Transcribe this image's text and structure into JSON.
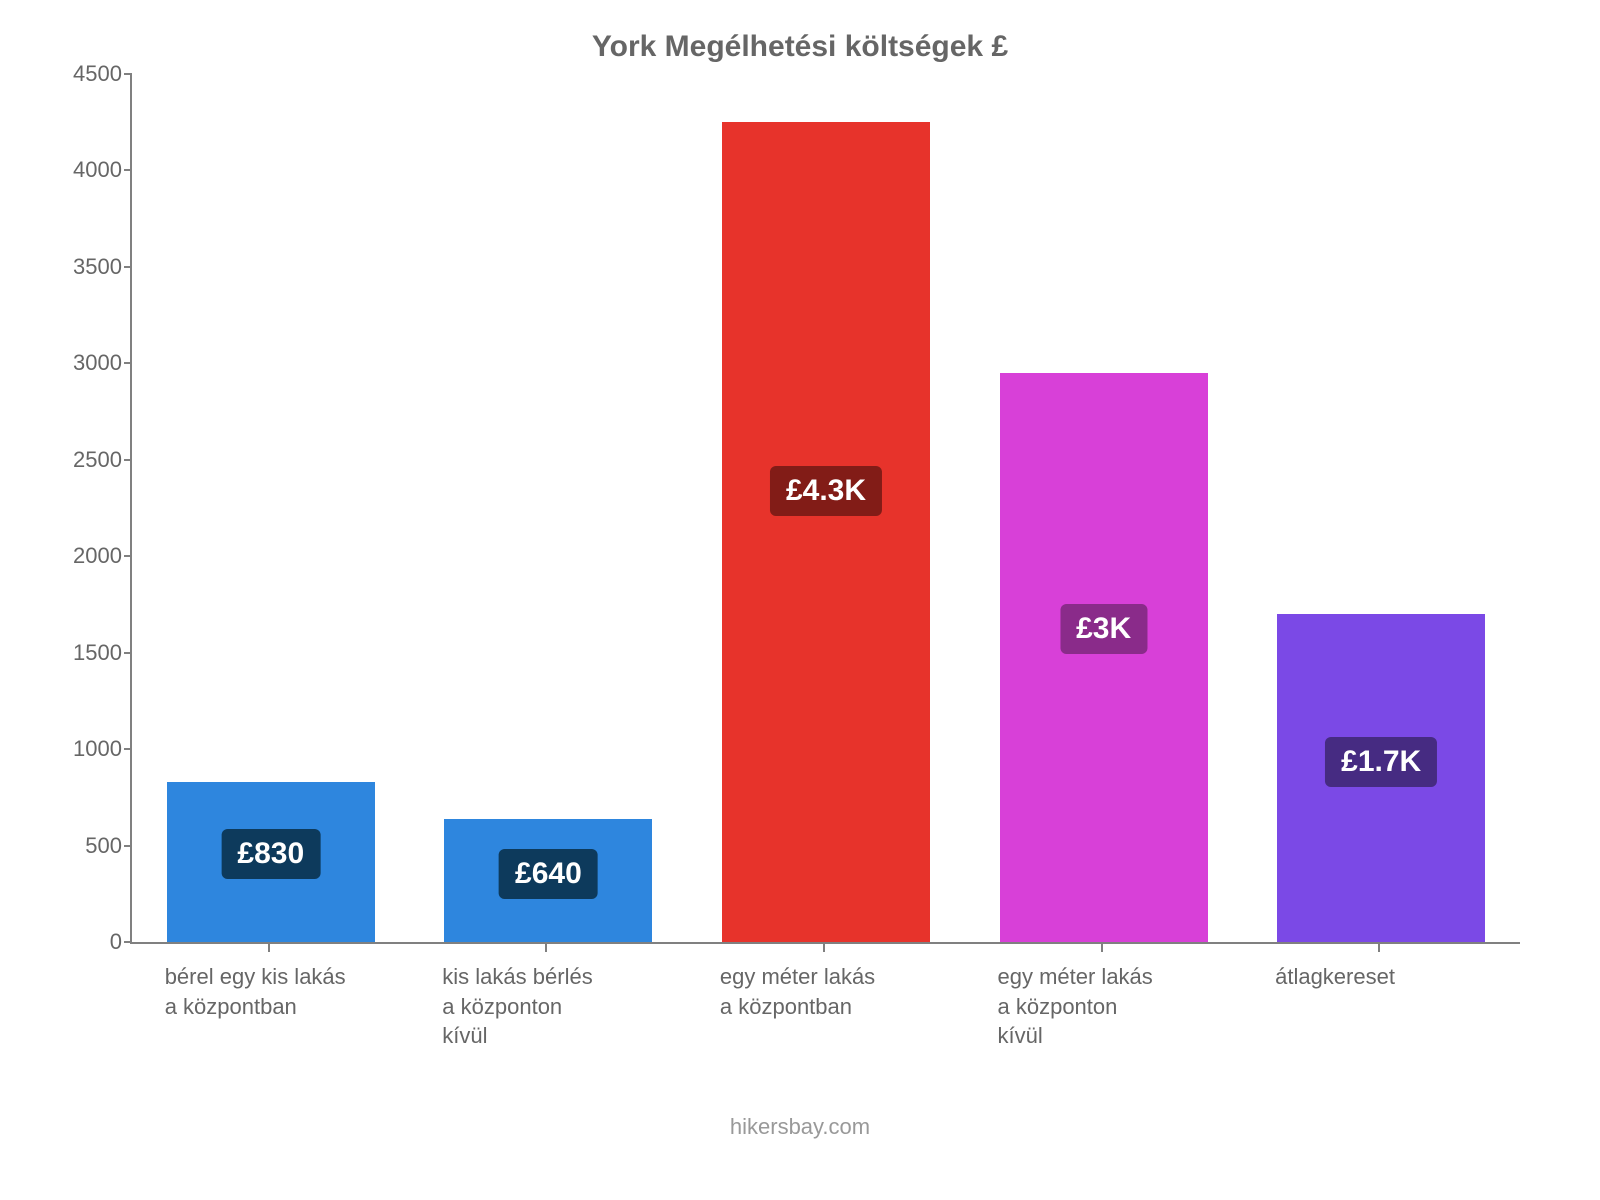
{
  "chart": {
    "type": "bar",
    "title": "York Megélhetési költségek £",
    "title_color": "#666666",
    "title_fontsize": 30,
    "background_color": "#ffffff",
    "axis_color": "#808080",
    "ylim": [
      0,
      4500
    ],
    "ytick_step": 500,
    "yticks": [
      0,
      500,
      1000,
      1500,
      2000,
      2500,
      3000,
      3500,
      4000,
      4500
    ],
    "ytick_fontsize": 22,
    "ytick_color": "#666666",
    "xlabel_fontsize": 22,
    "xlabel_color": "#666666",
    "bar_width_ratio": 0.75,
    "categories": [
      "bérel egy kis lakás\na központban",
      "kis lakás bérlés\na központon\nkívül",
      "egy méter lakás\na központban",
      "egy méter lakás\na központon\nkívül",
      "átlagkereset"
    ],
    "values": [
      830,
      640,
      4250,
      2950,
      1700
    ],
    "value_labels": [
      "£830",
      "£640",
      "£4.3K",
      "£3K",
      "£1.7K"
    ],
    "bar_colors": [
      "#2e86de",
      "#2e86de",
      "#e7332b",
      "#d840d8",
      "#7b49e6"
    ],
    "label_bg_colors": [
      "#0d3a5c",
      "#0d3a5c",
      "#821c17",
      "#8a2b8a",
      "#462b82"
    ],
    "label_text_color": "#ffffff",
    "label_fontsize": 30
  },
  "attribution": "hikersbay.com",
  "attribution_color": "#999999",
  "attribution_fontsize": 22
}
